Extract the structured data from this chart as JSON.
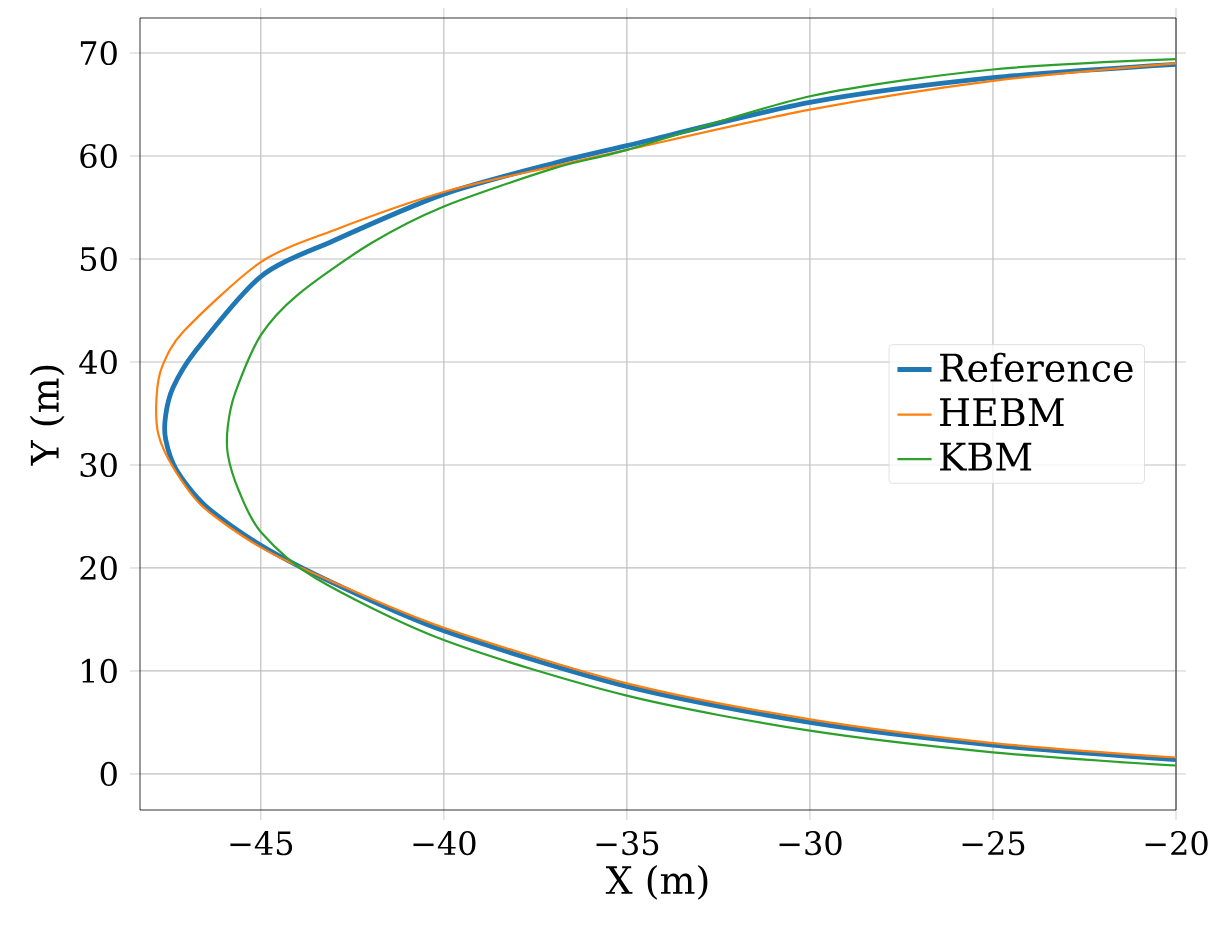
{
  "chart_data": {
    "type": "line",
    "xlabel": "X (m)",
    "ylabel": "Y (m)",
    "xlim": [
      -48.3,
      -20
    ],
    "ylim": [
      -3.5,
      73.4
    ],
    "xticks": [
      {
        "value": -45,
        "label": "−45"
      },
      {
        "value": -40,
        "label": "−40"
      },
      {
        "value": -35,
        "label": "−35"
      },
      {
        "value": -30,
        "label": "−30"
      },
      {
        "value": -25,
        "label": "−25"
      },
      {
        "value": -20,
        "label": "−20"
      }
    ],
    "yticks": [
      0,
      10,
      20,
      30,
      40,
      50,
      60,
      70
    ],
    "grid": true,
    "legend": "right",
    "marker": "none",
    "line_style": "solid",
    "series": [
      {
        "name": "Reference",
        "color": "#1f77b4",
        "x": [
          -20,
          -25,
          -30,
          -35,
          -40,
          -43,
          -45,
          -46.5,
          -47.3,
          -47.6,
          -47.6,
          -47.4,
          -46.8,
          -45,
          -43,
          -40,
          -37,
          -35,
          -30,
          -25,
          -20
        ],
        "values": [
          1.4,
          2.8,
          5.0,
          8.5,
          13.9,
          18.5,
          22.2,
          26,
          29.5,
          32.5,
          34.8,
          37.5,
          41,
          48.3,
          51.8,
          56.3,
          59.3,
          61,
          65.2,
          67.6,
          68.9
        ]
      },
      {
        "name": "HEBM",
        "color": "#ff7f0e",
        "x": [
          -20,
          -25,
          -30,
          -35,
          -40,
          -43,
          -45,
          -46.6,
          -47.4,
          -47.8,
          -47.85,
          -47.7,
          -47.1,
          -45,
          -43,
          -40,
          -37,
          -35,
          -30,
          -25,
          -20
        ],
        "values": [
          1.6,
          3.0,
          5.3,
          8.8,
          14.2,
          18.6,
          22,
          26,
          29.8,
          33,
          36.5,
          39.5,
          43,
          49.7,
          52.8,
          56.5,
          59,
          60.6,
          64.5,
          67.3,
          69.0
        ]
      },
      {
        "name": "KBM",
        "color": "#2ca02c",
        "x": [
          -20,
          -25,
          -30,
          -35,
          -40,
          -43.5,
          -45,
          -45.6,
          -45.9,
          -45.9,
          -45.7,
          -45,
          -44,
          -42,
          -40,
          -37,
          -35,
          -30,
          -25,
          -20
        ],
        "values": [
          0.8,
          2.1,
          4.2,
          7.6,
          13.0,
          19,
          23.5,
          27.5,
          31,
          33.8,
          37,
          42.6,
          46.5,
          51.5,
          55.1,
          58.8,
          60.6,
          65.8,
          68.4,
          69.4
        ]
      }
    ]
  }
}
